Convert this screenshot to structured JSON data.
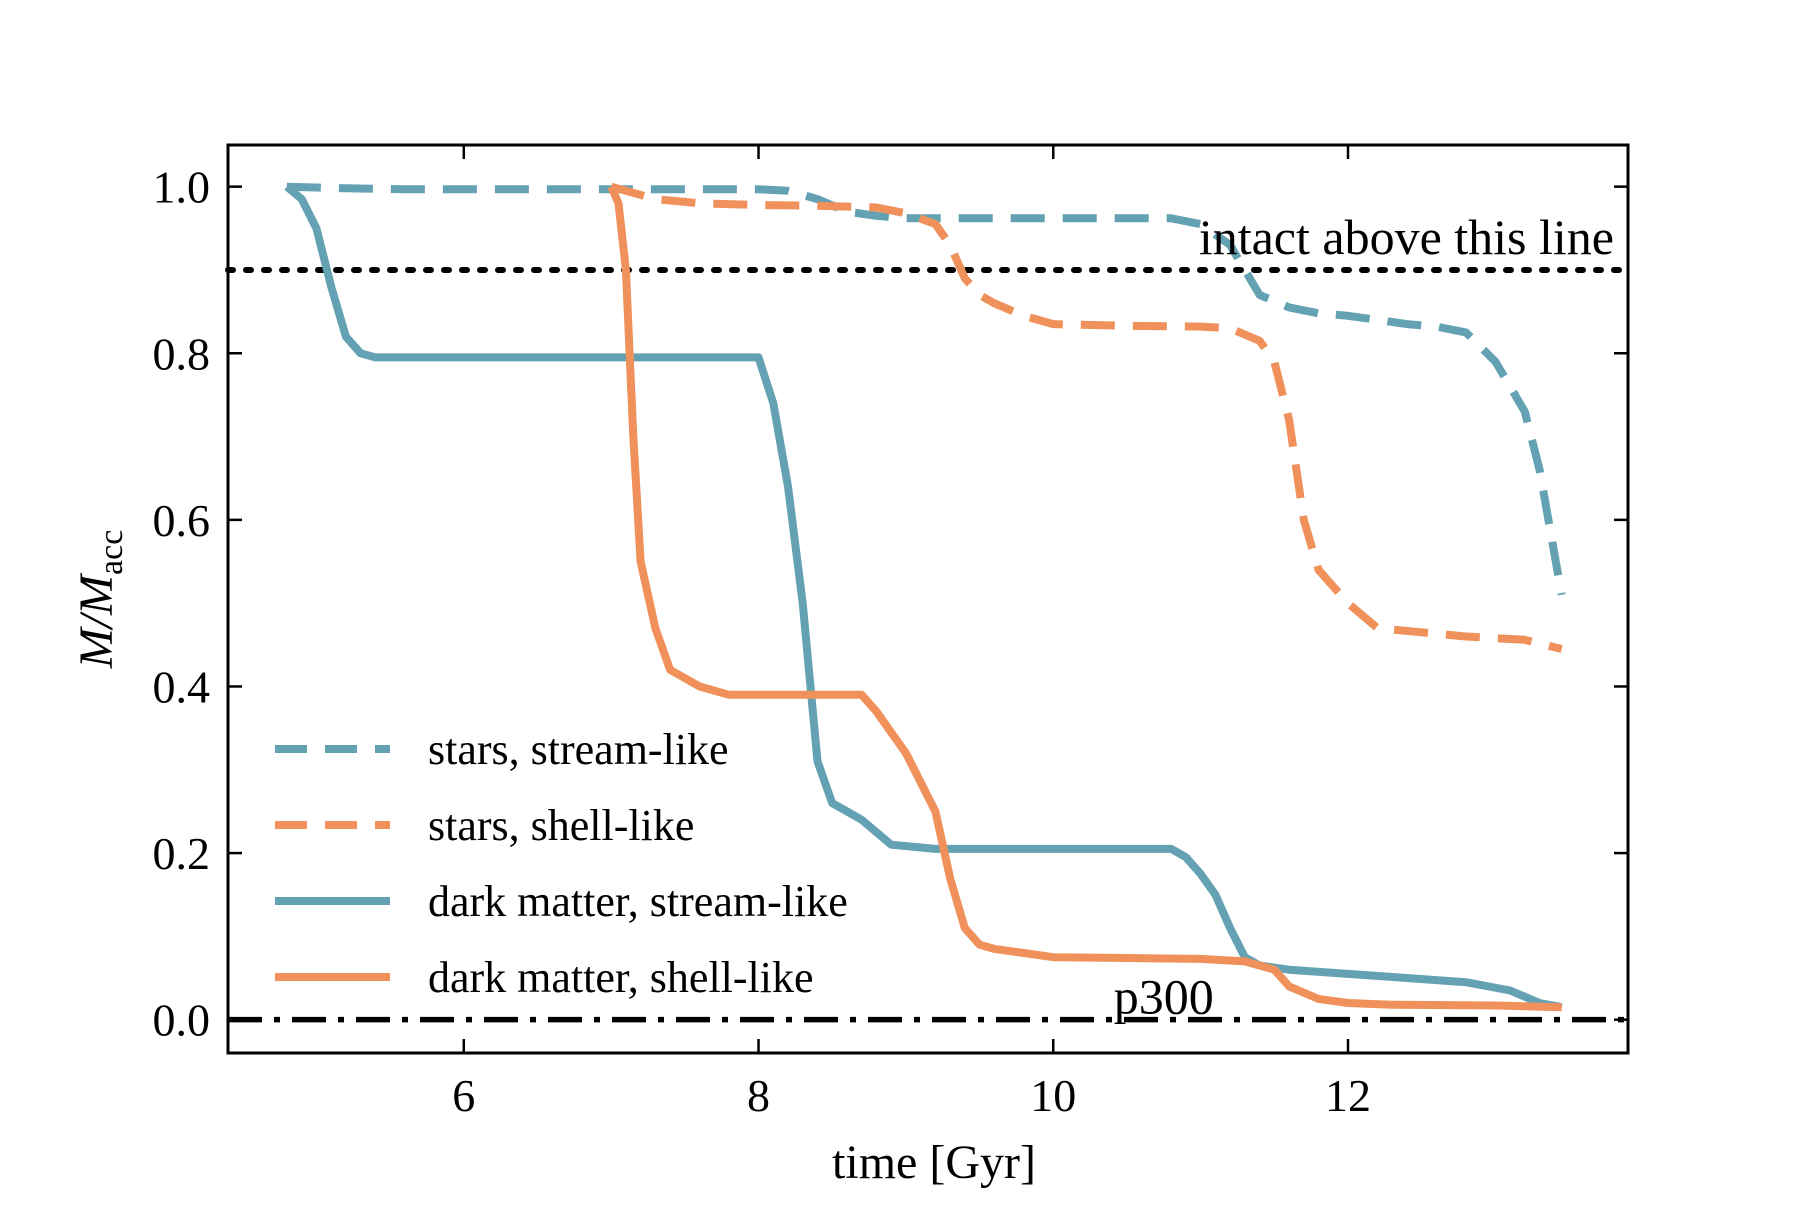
{
  "chart_data": {
    "type": "line",
    "title": "",
    "xlabel": "time [Gyr]",
    "ylabel_main": "M/M",
    "ylabel_sub": "acc",
    "xlim": [
      4.4,
      13.9
    ],
    "ylim": [
      -0.04,
      1.05
    ],
    "xticks": [
      6,
      8,
      10,
      12
    ],
    "xtick_labels": [
      "6",
      "8",
      "10",
      "12"
    ],
    "yticks": [
      0.0,
      0.2,
      0.4,
      0.6,
      0.8,
      1.0
    ],
    "ytick_labels": [
      "0.0",
      "0.2",
      "0.4",
      "0.6",
      "0.8",
      "1.0"
    ],
    "grid": false,
    "legend_position": "lower-left",
    "colors": {
      "stream": "#64a2b3",
      "shell": "#f0915b",
      "reference": "#000000"
    },
    "reference_lines": [
      {
        "name": "intact-threshold",
        "y": 0.9,
        "style": "dotted",
        "label": "intact above this line"
      },
      {
        "name": "zero-line",
        "y": 0.0,
        "style": "dashdot",
        "label": "p300"
      }
    ],
    "series": [
      {
        "name": "stars, stream-like",
        "color": "stream",
        "style": "dashed",
        "x": [
          4.8,
          5.2,
          5.6,
          6.0,
          7.0,
          8.0,
          8.2,
          8.4,
          8.6,
          8.8,
          9.0,
          9.5,
          10.0,
          10.8,
          11.0,
          11.2,
          11.4,
          11.6,
          11.8,
          12.0,
          12.2,
          12.4,
          12.6,
          12.8,
          13.0,
          13.2,
          13.3,
          13.4,
          13.45
        ],
        "y": [
          1.0,
          0.998,
          0.997,
          0.997,
          0.997,
          0.997,
          0.995,
          0.985,
          0.97,
          0.965,
          0.962,
          0.962,
          0.962,
          0.962,
          0.955,
          0.93,
          0.87,
          0.855,
          0.848,
          0.845,
          0.84,
          0.835,
          0.832,
          0.825,
          0.79,
          0.73,
          0.66,
          0.56,
          0.51
        ]
      },
      {
        "name": "stars, shell-like",
        "color": "shell",
        "style": "dashed",
        "x": [
          7.0,
          7.1,
          7.3,
          7.6,
          8.0,
          8.4,
          8.8,
          9.0,
          9.2,
          9.3,
          9.4,
          9.5,
          9.6,
          9.8,
          10.0,
          10.5,
          11.0,
          11.2,
          11.4,
          11.5,
          11.6,
          11.7,
          11.8,
          12.0,
          12.2,
          12.5,
          12.8,
          13.0,
          13.2,
          13.45
        ],
        "y": [
          1.0,
          0.995,
          0.985,
          0.98,
          0.978,
          0.977,
          0.975,
          0.968,
          0.955,
          0.93,
          0.89,
          0.87,
          0.86,
          0.845,
          0.835,
          0.833,
          0.832,
          0.83,
          0.815,
          0.79,
          0.72,
          0.6,
          0.54,
          0.5,
          0.47,
          0.465,
          0.46,
          0.458,
          0.456,
          0.445
        ]
      },
      {
        "name": "dark matter, stream-like",
        "color": "stream",
        "style": "solid",
        "x": [
          4.8,
          4.9,
          5.0,
          5.1,
          5.2,
          5.3,
          5.4,
          5.5,
          6.0,
          7.0,
          8.0,
          8.1,
          8.2,
          8.3,
          8.4,
          8.5,
          8.6,
          8.7,
          8.9,
          9.2,
          10.0,
          10.8,
          10.9,
          11.0,
          11.1,
          11.2,
          11.3,
          11.4,
          11.6,
          12.0,
          12.4,
          12.8,
          13.1,
          13.3,
          13.45
        ],
        "y": [
          1.0,
          0.985,
          0.95,
          0.88,
          0.82,
          0.8,
          0.795,
          0.795,
          0.795,
          0.795,
          0.795,
          0.74,
          0.64,
          0.5,
          0.31,
          0.26,
          0.25,
          0.24,
          0.21,
          0.205,
          0.205,
          0.205,
          0.195,
          0.175,
          0.15,
          0.11,
          0.075,
          0.065,
          0.06,
          0.055,
          0.05,
          0.045,
          0.035,
          0.02,
          0.015
        ]
      },
      {
        "name": "dark matter, shell-like",
        "color": "shell",
        "style": "solid",
        "x": [
          7.0,
          7.05,
          7.1,
          7.15,
          7.2,
          7.3,
          7.4,
          7.6,
          7.8,
          8.0,
          8.4,
          8.7,
          8.8,
          9.0,
          9.2,
          9.3,
          9.4,
          9.5,
          9.6,
          9.8,
          10.0,
          10.5,
          11.0,
          11.3,
          11.5,
          11.6,
          11.8,
          12.0,
          12.3,
          13.0,
          13.45
        ],
        "y": [
          1.0,
          0.98,
          0.9,
          0.7,
          0.55,
          0.47,
          0.42,
          0.4,
          0.39,
          0.39,
          0.39,
          0.39,
          0.37,
          0.32,
          0.25,
          0.17,
          0.11,
          0.09,
          0.085,
          0.08,
          0.075,
          0.074,
          0.073,
          0.07,
          0.06,
          0.04,
          0.025,
          0.02,
          0.018,
          0.017,
          0.015
        ]
      }
    ]
  }
}
